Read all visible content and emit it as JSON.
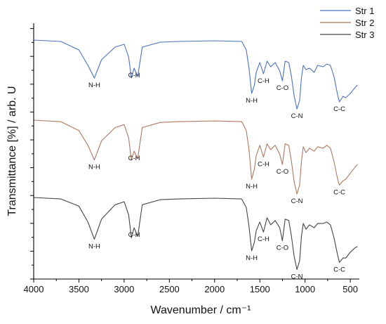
{
  "chart_data": {
    "type": "line",
    "xlabel": "Wavenumber / cm⁻¹",
    "ylabel": "Transmittance [%] / arb. U",
    "xlim": [
      4000,
      400
    ],
    "x_reversed": true,
    "x_ticks": [
      4000,
      3500,
      3000,
      2500,
      2000,
      1500,
      1000,
      500
    ],
    "y_ticks_labeled": false,
    "grid": false,
    "legend_position": "top-right",
    "series": [
      {
        "name": "Str 1",
        "color": "#4a72c4",
        "points": [
          [
            4000,
            1.0
          ],
          [
            3700,
            0.99
          ],
          [
            3500,
            0.93
          ],
          [
            3400,
            0.82
          ],
          [
            3330,
            0.73
          ],
          [
            3250,
            0.86
          ],
          [
            3100,
            0.95
          ],
          [
            3000,
            0.97
          ],
          [
            2950,
            0.88
          ],
          [
            2920,
            0.73
          ],
          [
            2890,
            0.8
          ],
          [
            2850,
            0.74
          ],
          [
            2800,
            0.95
          ],
          [
            2600,
            0.985
          ],
          [
            2400,
            0.99
          ],
          [
            2000,
            0.995
          ],
          [
            1700,
            0.99
          ],
          [
            1650,
            0.93
          ],
          [
            1620,
            0.8
          ],
          [
            1590,
            0.62
          ],
          [
            1560,
            0.68
          ],
          [
            1540,
            0.77
          ],
          [
            1500,
            0.84
          ],
          [
            1460,
            0.76
          ],
          [
            1420,
            0.85
          ],
          [
            1380,
            0.81
          ],
          [
            1330,
            0.84
          ],
          [
            1280,
            0.78
          ],
          [
            1250,
            0.71
          ],
          [
            1220,
            0.85
          ],
          [
            1180,
            0.84
          ],
          [
            1150,
            0.74
          ],
          [
            1120,
            0.6
          ],
          [
            1090,
            0.51
          ],
          [
            1060,
            0.57
          ],
          [
            1040,
            0.73
          ],
          [
            1020,
            0.82
          ],
          [
            990,
            0.79
          ],
          [
            950,
            0.8
          ],
          [
            900,
            0.77
          ],
          [
            860,
            0.82
          ],
          [
            800,
            0.81
          ],
          [
            760,
            0.83
          ],
          [
            720,
            0.82
          ],
          [
            680,
            0.74
          ],
          [
            640,
            0.61
          ],
          [
            620,
            0.56
          ],
          [
            580,
            0.6
          ],
          [
            550,
            0.59
          ],
          [
            500,
            0.62
          ],
          [
            450,
            0.66
          ],
          [
            420,
            0.68
          ]
        ]
      },
      {
        "name": "Str 2",
        "color": "#b07860",
        "points": [
          [
            4000,
            1.0
          ],
          [
            3700,
            0.99
          ],
          [
            3500,
            0.93
          ],
          [
            3400,
            0.83
          ],
          [
            3330,
            0.73
          ],
          [
            3250,
            0.86
          ],
          [
            3100,
            0.95
          ],
          [
            3000,
            0.97
          ],
          [
            2950,
            0.88
          ],
          [
            2920,
            0.73
          ],
          [
            2890,
            0.79
          ],
          [
            2850,
            0.74
          ],
          [
            2800,
            0.95
          ],
          [
            2600,
            0.985
          ],
          [
            2400,
            0.99
          ],
          [
            2000,
            0.995
          ],
          [
            1700,
            0.99
          ],
          [
            1650,
            0.93
          ],
          [
            1620,
            0.8
          ],
          [
            1590,
            0.6
          ],
          [
            1560,
            0.67
          ],
          [
            1540,
            0.76
          ],
          [
            1500,
            0.83
          ],
          [
            1460,
            0.75
          ],
          [
            1420,
            0.84
          ],
          [
            1380,
            0.8
          ],
          [
            1330,
            0.83
          ],
          [
            1280,
            0.77
          ],
          [
            1250,
            0.7
          ],
          [
            1220,
            0.84
          ],
          [
            1180,
            0.83
          ],
          [
            1150,
            0.72
          ],
          [
            1120,
            0.58
          ],
          [
            1090,
            0.5
          ],
          [
            1060,
            0.56
          ],
          [
            1040,
            0.72
          ],
          [
            1020,
            0.82
          ],
          [
            990,
            0.78
          ],
          [
            950,
            0.81
          ],
          [
            900,
            0.79
          ],
          [
            860,
            0.82
          ],
          [
            800,
            0.81
          ],
          [
            760,
            0.83
          ],
          [
            720,
            0.81
          ],
          [
            680,
            0.72
          ],
          [
            640,
            0.6
          ],
          [
            620,
            0.56
          ],
          [
            580,
            0.59
          ],
          [
            550,
            0.6
          ],
          [
            500,
            0.64
          ],
          [
            450,
            0.68
          ],
          [
            420,
            0.7
          ]
        ]
      },
      {
        "name": "Str 3",
        "color": "#444444",
        "points": [
          [
            4000,
            1.0
          ],
          [
            3700,
            0.99
          ],
          [
            3500,
            0.94
          ],
          [
            3400,
            0.83
          ],
          [
            3330,
            0.71
          ],
          [
            3250,
            0.85
          ],
          [
            3100,
            0.95
          ],
          [
            3000,
            0.97
          ],
          [
            2950,
            0.88
          ],
          [
            2920,
            0.72
          ],
          [
            2890,
            0.79
          ],
          [
            2850,
            0.73
          ],
          [
            2800,
            0.95
          ],
          [
            2600,
            0.985
          ],
          [
            2400,
            0.99
          ],
          [
            2000,
            0.995
          ],
          [
            1700,
            0.99
          ],
          [
            1650,
            0.93
          ],
          [
            1620,
            0.8
          ],
          [
            1590,
            0.63
          ],
          [
            1560,
            0.69
          ],
          [
            1540,
            0.77
          ],
          [
            1500,
            0.83
          ],
          [
            1460,
            0.76
          ],
          [
            1420,
            0.86
          ],
          [
            1380,
            0.81
          ],
          [
            1330,
            0.84
          ],
          [
            1280,
            0.79
          ],
          [
            1250,
            0.7
          ],
          [
            1220,
            0.85
          ],
          [
            1180,
            0.84
          ],
          [
            1150,
            0.73
          ],
          [
            1120,
            0.59
          ],
          [
            1090,
            0.5
          ],
          [
            1060,
            0.56
          ],
          [
            1040,
            0.73
          ],
          [
            1020,
            0.82
          ],
          [
            990,
            0.78
          ],
          [
            950,
            0.81
          ],
          [
            900,
            0.79
          ],
          [
            860,
            0.82
          ],
          [
            800,
            0.82
          ],
          [
            760,
            0.83
          ],
          [
            720,
            0.81
          ],
          [
            680,
            0.72
          ],
          [
            640,
            0.6
          ],
          [
            620,
            0.55
          ],
          [
            580,
            0.58
          ],
          [
            550,
            0.58
          ],
          [
            500,
            0.62
          ],
          [
            450,
            0.65
          ],
          [
            420,
            0.66
          ]
        ]
      }
    ],
    "annotations": [
      {
        "series": 0,
        "label": "N-H",
        "x": 3330
      },
      {
        "series": 0,
        "label": "C-H",
        "x": 2890
      },
      {
        "series": 0,
        "label": "N-H",
        "x": 1590
      },
      {
        "series": 0,
        "label": "C-H",
        "x": 1460
      },
      {
        "series": 0,
        "label": "C-O",
        "x": 1250
      },
      {
        "series": 0,
        "label": "C-N",
        "x": 1090
      },
      {
        "series": 0,
        "label": "C-C",
        "x": 620
      },
      {
        "series": 1,
        "label": "N-H",
        "x": 3330
      },
      {
        "series": 1,
        "label": "C-H",
        "x": 2890
      },
      {
        "series": 1,
        "label": "N-H",
        "x": 1590
      },
      {
        "series": 1,
        "label": "C-H",
        "x": 1460
      },
      {
        "series": 1,
        "label": "C-O",
        "x": 1250
      },
      {
        "series": 1,
        "label": "C-N",
        "x": 1090
      },
      {
        "series": 1,
        "label": "C-C",
        "x": 620
      },
      {
        "series": 2,
        "label": "N-H",
        "x": 3330
      },
      {
        "series": 2,
        "label": "C-H",
        "x": 2890
      },
      {
        "series": 2,
        "label": "N-H",
        "x": 1590
      },
      {
        "series": 2,
        "label": "C-H",
        "x": 1460
      },
      {
        "series": 2,
        "label": "C-O",
        "x": 1250
      },
      {
        "series": 2,
        "label": "C-N",
        "x": 1090
      },
      {
        "series": 2,
        "label": "C-C",
        "x": 620
      }
    ]
  }
}
